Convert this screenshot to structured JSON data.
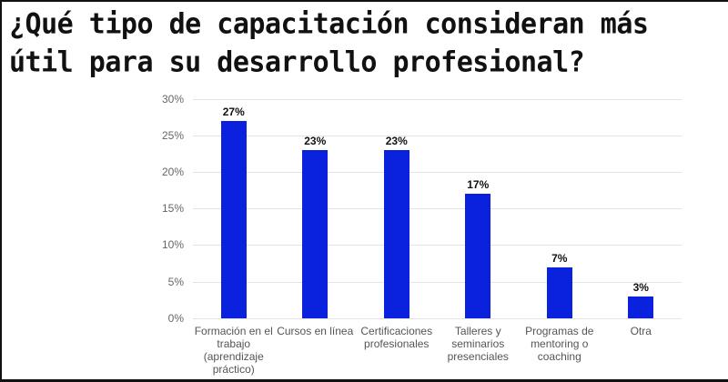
{
  "title": "¿Qué tipo de capacitación consideran más útil para su desarrollo profesional?",
  "chart_data": {
    "type": "bar",
    "title": "¿Qué tipo de capacitación consideran más útil para su desarrollo profesional?",
    "categories": [
      "Formación en el trabajo (aprendizaje práctico)",
      "Cursos en línea",
      "Certificaciones profesionales",
      "Talleres y seminarios presenciales",
      "Programas de mentoring o coaching",
      "Otra"
    ],
    "values": [
      27,
      23,
      23,
      17,
      7,
      3
    ],
    "value_labels": [
      "27%",
      "23%",
      "23%",
      "17%",
      "7%",
      "3%"
    ],
    "xlabel": "",
    "ylabel": "",
    "ylim": [
      0,
      30
    ],
    "yticks": [
      "0%",
      "5%",
      "10%",
      "15%",
      "20%",
      "25%",
      "30%"
    ],
    "grid": true,
    "legend": "none",
    "bar_color": "#0a22dd"
  },
  "axis": {
    "yticks": [
      "30%",
      "25%",
      "20%",
      "15%",
      "10%",
      "5%",
      "0%"
    ]
  },
  "bars": [
    {
      "label_lines": "Formación en el\ntrabajo\n(aprendizaje\npráctico)",
      "value": 27,
      "value_label": "27%"
    },
    {
      "label_lines": "Cursos en línea",
      "value": 23,
      "value_label": "23%"
    },
    {
      "label_lines": "Certificaciones\nprofesionales",
      "value": 23,
      "value_label": "23%"
    },
    {
      "label_lines": "Talleres y\nseminarios\npresenciales",
      "value": 17,
      "value_label": "17%"
    },
    {
      "label_lines": "Programas de\nmentoring o\ncoaching",
      "value": 7,
      "value_label": "7%"
    },
    {
      "label_lines": "Otra",
      "value": 3,
      "value_label": "3%"
    }
  ]
}
